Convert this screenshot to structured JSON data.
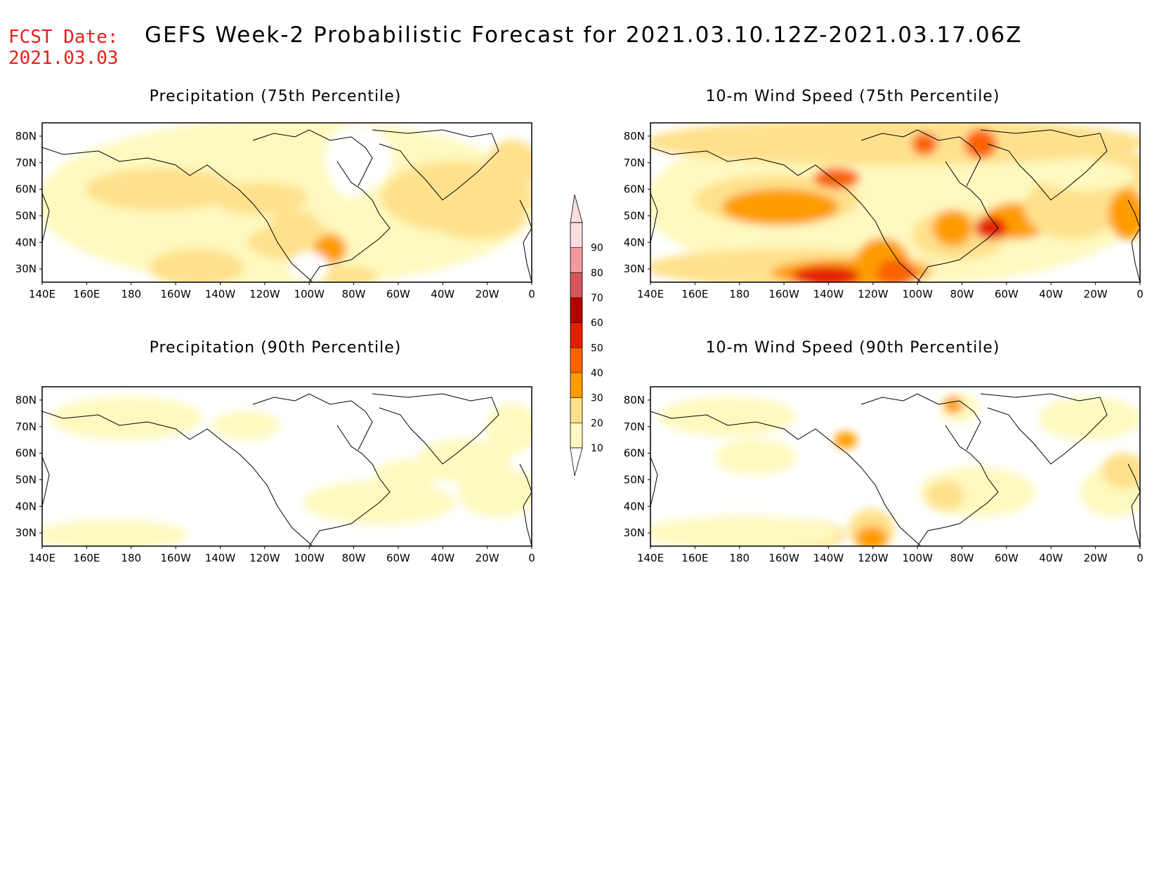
{
  "header": {
    "fcst_label": "FCST Date:",
    "fcst_date": "2021.03.03",
    "title": "GEFS Week-2 Probabilistic Forecast for 2021.03.10.12Z-2021.03.17.06Z",
    "label_color": "#e8201c"
  },
  "axes": {
    "lon_ticks": [
      "140E",
      "160E",
      "180",
      "160W",
      "140W",
      "120W",
      "100W",
      "80W",
      "60W",
      "40W",
      "20W",
      "0"
    ],
    "lat_ticks": [
      "80N",
      "70N",
      "60N",
      "50N",
      "40N",
      "30N"
    ]
  },
  "panels": [
    {
      "id": "precip-75",
      "title": "Precipitation (75th Percentile)",
      "intensity": "moderate"
    },
    {
      "id": "wind-75",
      "title": "10-m Wind Speed (75th Percentile)",
      "intensity": "high"
    },
    {
      "id": "precip-90",
      "title": "Precipitation (90th Percentile)",
      "intensity": "low"
    },
    {
      "id": "wind-90",
      "title": "10-m Wind Speed (90th Percentile)",
      "intensity": "low"
    }
  ],
  "colorbar": {
    "levels": [
      "10",
      "20",
      "30",
      "40",
      "50",
      "60",
      "70",
      "80",
      "90"
    ],
    "colors": [
      "#fff9c0",
      "#ffe18d",
      "#ff9c00",
      "#fa6400",
      "#e32000",
      "#b40000",
      "#d5575b",
      "#f09aa0",
      "#fbdde0"
    ]
  },
  "chart_data": {
    "type": "heatmap",
    "x_range": [
      "140E",
      "0"
    ],
    "y_range": [
      "25N",
      "85N"
    ],
    "levels": [
      10,
      20,
      30,
      40,
      50,
      60,
      70,
      80,
      90
    ]
  }
}
